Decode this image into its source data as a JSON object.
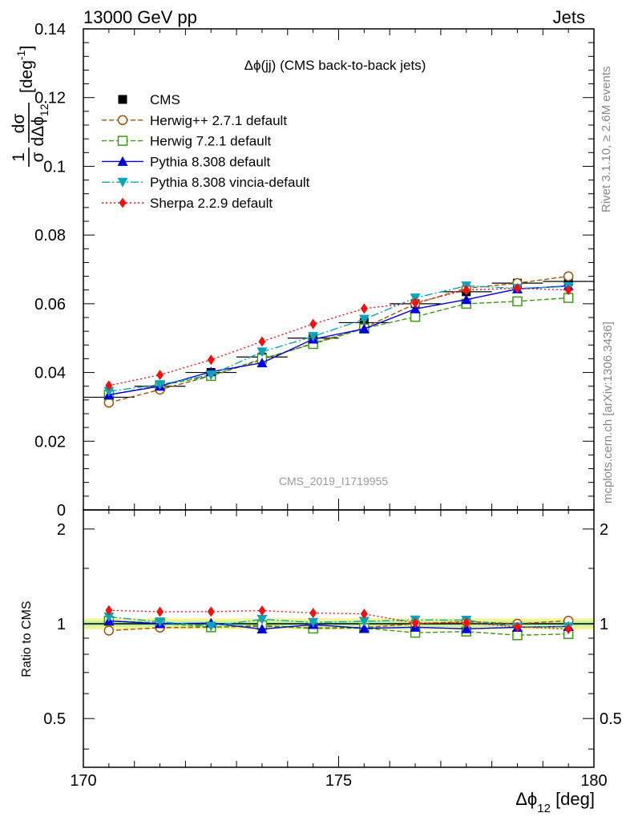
{
  "header": {
    "left": "13000 GeV pp",
    "right": "Jets"
  },
  "side": {
    "rivet": "Rivet 3.1.10, ≥ 2.6M events",
    "mcplots": "mcplots.cern.ch [arXiv:1306.3436]"
  },
  "chart_data": {
    "type": "line",
    "title": "Δϕ(jj) (CMS back-to-back jets)",
    "watermark": "CMS_2019_I1719955",
    "ylabel": {
      "frac_num": "1",
      "frac_den": "σ",
      "d_num": "dσ",
      "d_den": "dΔϕ",
      "d_den_sub": "12",
      "unit": "[deg",
      "unit_sup": "-1",
      "unit_close": "]"
    },
    "xlabel": {
      "main": "Δϕ",
      "sub": "12",
      "unit": " [deg]"
    },
    "ratio_ylabel": "Ratio to CMS",
    "xlim": [
      170,
      180
    ],
    "ylim": [
      0,
      0.14
    ],
    "ratio_ylim": [
      0.35,
      2.3
    ],
    "x_ticks": [
      "170",
      "175",
      "180"
    ],
    "y_ticks": [
      "0",
      "0.02",
      "0.04",
      "0.06",
      "0.08",
      "0.1",
      "0.12",
      "0.14"
    ],
    "ratio_ticks": [
      "0.5",
      "1",
      "2"
    ],
    "x": [
      170.5,
      171.5,
      172.5,
      173.5,
      174.5,
      175.5,
      176.5,
      177.5,
      178.5,
      179.5
    ],
    "data": {
      "name": "CMS",
      "values": [
        0.0328,
        0.036,
        0.04,
        0.0445,
        0.05,
        0.0545,
        0.06,
        0.0635,
        0.066,
        0.0665
      ]
    },
    "band_halfwidth": 0.04,
    "series": [
      {
        "name": "Herwig++ 2.7.1 default",
        "color": "#a0520e",
        "dash": "6,3",
        "marker": "circle-open",
        "values": [
          0.0312,
          0.035,
          0.039,
          0.0437,
          0.0485,
          0.053,
          0.06,
          0.0645,
          0.066,
          0.068
        ]
      },
      {
        "name": "Herwig 7.2.1 default",
        "color": "#3a9a10",
        "dash": "6,3",
        "marker": "square-open",
        "values": [
          0.0335,
          0.0362,
          0.039,
          0.044,
          0.0483,
          0.0528,
          0.0562,
          0.06,
          0.0607,
          0.0617
        ]
      },
      {
        "name": "Pythia 8.308 default",
        "color": "#0000dd",
        "dash": "",
        "marker": "triangle-up",
        "values": [
          0.0335,
          0.036,
          0.0402,
          0.0428,
          0.0497,
          0.0527,
          0.0585,
          0.0612,
          0.0643,
          0.0652
        ]
      },
      {
        "name": "Pythia 8.308 vincia-default",
        "color": "#0fa3b8",
        "dash": "10,3,2,3",
        "marker": "triangle-down",
        "values": [
          0.0345,
          0.0365,
          0.0393,
          0.046,
          0.0505,
          0.0555,
          0.0617,
          0.0652,
          0.0645,
          0.065
        ]
      },
      {
        "name": "Sherpa 2.2.9 default",
        "color": "#ee1111",
        "dash": "2,3",
        "marker": "diamond",
        "values": [
          0.0362,
          0.0393,
          0.0437,
          0.049,
          0.0541,
          0.0586,
          0.0603,
          0.064,
          0.0645,
          0.064
        ]
      }
    ]
  }
}
